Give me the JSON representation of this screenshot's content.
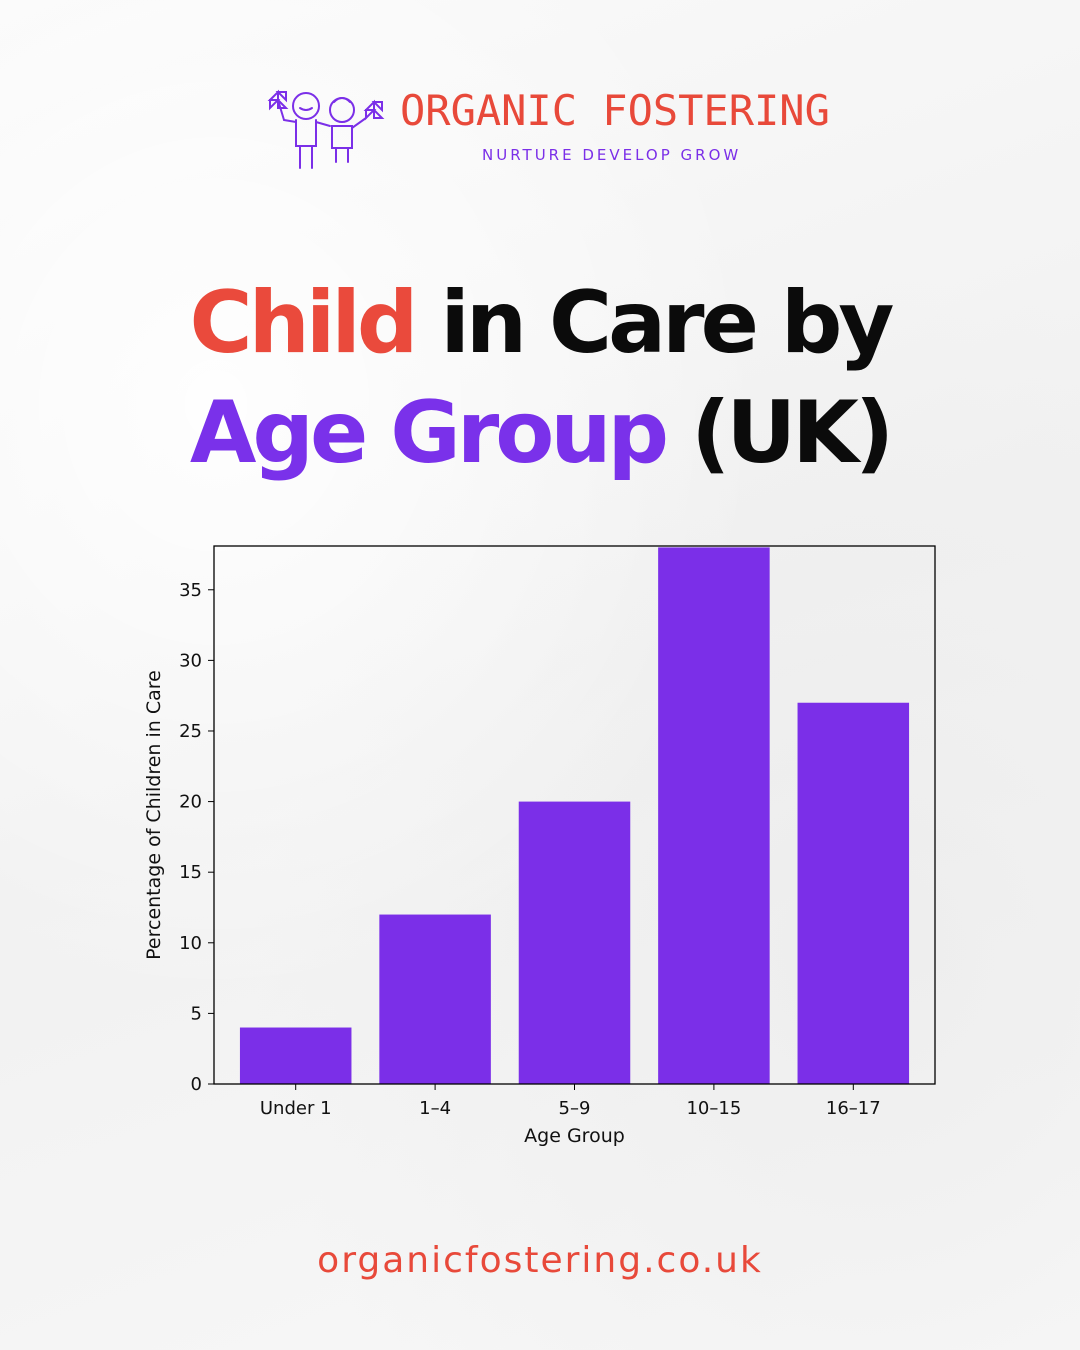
{
  "brand": {
    "name": "ORGANIC FOSTERING",
    "tagline": "NURTURE DEVELOP GROW"
  },
  "headline": {
    "line1_red": "Child",
    "line1_black": "in Care by",
    "line2_purple": "Age Group",
    "line2_black": "(UK)"
  },
  "colors": {
    "accent_red": "#ea4a3c",
    "accent_purple": "#7a31ea",
    "bar": "#7b2fe8"
  },
  "chart_data": {
    "type": "bar",
    "categories": [
      "Under 1",
      "1–4",
      "5–9",
      "10–15",
      "16–17"
    ],
    "values": [
      4,
      12,
      20,
      38,
      27
    ],
    "xlabel": "Age Group",
    "ylabel": "Percentage of Children in Care",
    "ylim": [
      0,
      40
    ],
    "yticks": [
      0,
      5,
      10,
      15,
      20,
      25,
      30,
      35
    ],
    "grid": false,
    "legend": "none"
  },
  "footer": {
    "url": "organicfostering.co.uk"
  }
}
